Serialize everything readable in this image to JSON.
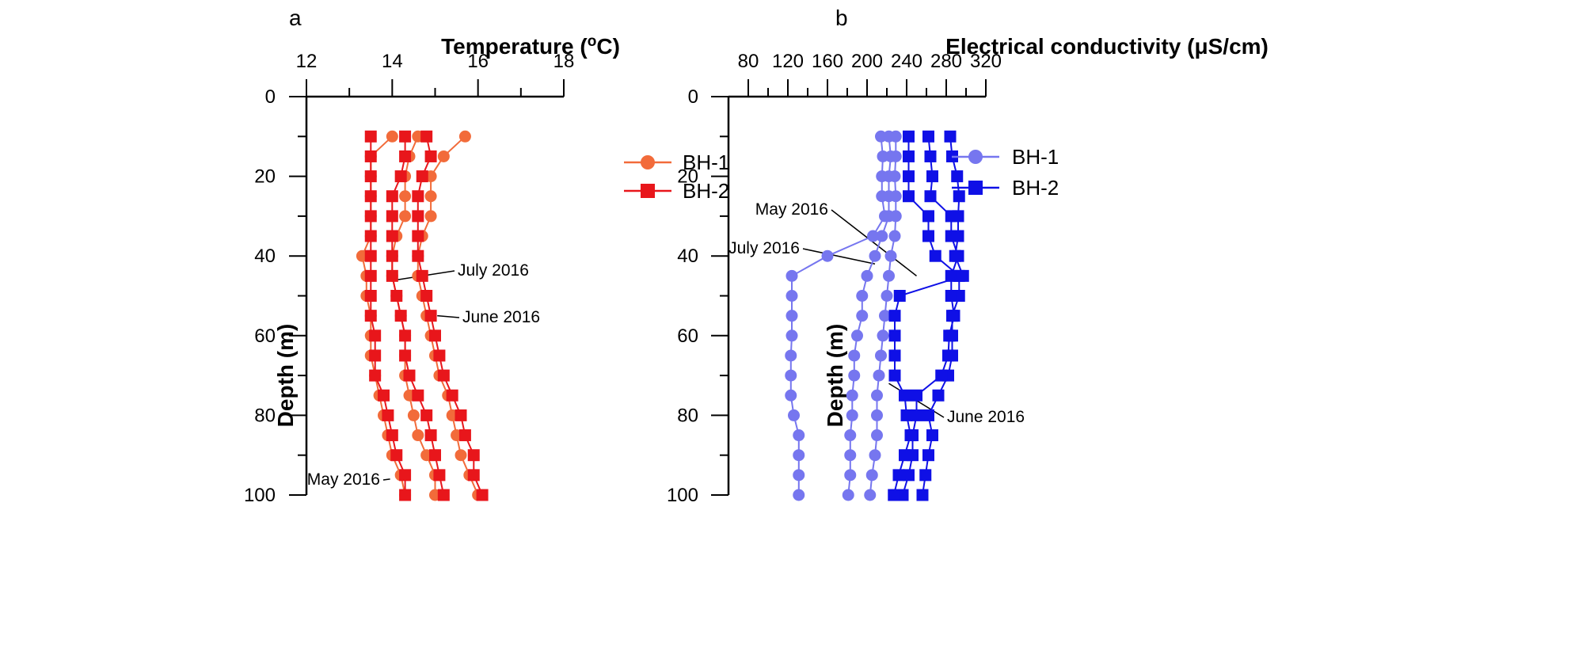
{
  "chart_data": [
    {
      "panel_label": "a",
      "type": "line",
      "title": "Temperature (°C)",
      "title_parts": [
        "Temperature (",
        "o",
        "C)"
      ],
      "xlabel": "Temperature (°C)",
      "ylabel": "Depth (m)",
      "xlim": [
        12,
        18
      ],
      "ylim": [
        0,
        100
      ],
      "xticks": [
        "12",
        "14",
        "16",
        "18"
      ],
      "yticks": [
        "0",
        "20",
        "40",
        "60",
        "80",
        "100"
      ],
      "x_axis_position": "top",
      "y_inverted": true,
      "legend": {
        "position": "top-right",
        "entries": [
          "BH-1",
          "BH-2"
        ]
      },
      "colors": {
        "BH-1": "#f26b3a",
        "BH-2": "#e8161b",
        "axis": "#000000"
      },
      "series": [
        {
          "name": "BH-1",
          "survey": "May 2016",
          "marker": "circle",
          "depth": [
            10,
            15,
            20,
            25,
            30,
            35,
            40,
            45,
            50,
            55,
            60,
            65,
            70,
            75,
            80,
            85,
            90,
            95,
            100
          ],
          "values": [
            14.0,
            13.5,
            13.5,
            13.5,
            13.5,
            13.5,
            13.3,
            13.4,
            13.4,
            13.5,
            13.5,
            13.5,
            13.6,
            13.7,
            13.8,
            13.9,
            14.0,
            14.2,
            14.3
          ]
        },
        {
          "name": "BH-1",
          "survey": "July 2016",
          "marker": "circle",
          "depth": [
            10,
            15,
            20,
            25,
            30,
            35,
            40,
            45,
            50,
            55,
            60,
            65,
            70,
            75,
            80,
            85,
            90,
            95,
            100
          ],
          "values": [
            14.6,
            14.4,
            14.3,
            14.3,
            14.3,
            14.1,
            14.0,
            14.0,
            14.1,
            14.2,
            14.3,
            14.3,
            14.3,
            14.4,
            14.5,
            14.6,
            14.8,
            15.0,
            15.0
          ]
        },
        {
          "name": "BH-1",
          "survey": "June 2016",
          "marker": "circle",
          "depth": [
            10,
            15,
            20,
            25,
            30,
            35,
            40,
            45,
            50,
            55,
            60,
            65,
            70,
            75,
            80,
            85,
            90,
            95,
            100
          ],
          "values": [
            15.7,
            15.2,
            14.9,
            14.9,
            14.9,
            14.7,
            14.6,
            14.6,
            14.7,
            14.8,
            14.9,
            15.0,
            15.1,
            15.3,
            15.4,
            15.5,
            15.6,
            15.8,
            16.0
          ]
        },
        {
          "name": "BH-2",
          "survey": "May 2016",
          "marker": "square",
          "depth": [
            10,
            15,
            20,
            25,
            30,
            35,
            40,
            45,
            50,
            55,
            60,
            65,
            70,
            75,
            80,
            85,
            90,
            95,
            100
          ],
          "values": [
            13.5,
            13.5,
            13.5,
            13.5,
            13.5,
            13.5,
            13.5,
            13.5,
            13.5,
            13.5,
            13.6,
            13.6,
            13.6,
            13.8,
            13.9,
            14.0,
            14.1,
            14.3,
            14.3
          ]
        },
        {
          "name": "BH-2",
          "survey": "July 2016",
          "marker": "square",
          "depth": [
            10,
            15,
            20,
            25,
            30,
            35,
            40,
            45,
            50,
            55,
            60,
            65,
            70,
            75,
            80,
            85,
            90,
            95,
            100
          ],
          "values": [
            14.3,
            14.3,
            14.2,
            14.0,
            14.0,
            14.0,
            14.0,
            14.0,
            14.1,
            14.2,
            14.3,
            14.3,
            14.4,
            14.6,
            14.8,
            14.9,
            15.0,
            15.1,
            15.2
          ]
        },
        {
          "name": "BH-2",
          "survey": "June 2016",
          "marker": "square",
          "depth": [
            10,
            15,
            20,
            25,
            30,
            35,
            40,
            45,
            50,
            55,
            60,
            65,
            70,
            75,
            80,
            85,
            90,
            95,
            100
          ],
          "values": [
            14.8,
            14.9,
            14.7,
            14.6,
            14.6,
            14.6,
            14.6,
            14.7,
            14.8,
            14.9,
            15.0,
            15.1,
            15.2,
            15.4,
            15.6,
            15.7,
            15.9,
            15.9,
            16.1
          ]
        }
      ],
      "annotations": [
        {
          "text": "July 2016",
          "target_x": 14.1,
          "target_depth": 46
        },
        {
          "text": "June 2016",
          "target_x": 15.05,
          "target_depth": 55
        },
        {
          "text": "May 2016",
          "target_x": 13.95,
          "target_depth": 96
        }
      ]
    },
    {
      "panel_label": "b",
      "type": "line",
      "title": "Electrical conductivity (µS/cm)",
      "title_parts": [
        "Electrical conductivity (",
        "μ",
        "S/cm)"
      ],
      "xlabel": "Electrical conductivity (µS/cm)",
      "ylabel": "Depth (m)",
      "xlim": [
        60,
        320
      ],
      "ylim": [
        0,
        100
      ],
      "xticks": [
        "80",
        "120",
        "160",
        "200",
        "240",
        "280",
        "320"
      ],
      "yticks": [
        "0",
        "20",
        "40",
        "60",
        "80",
        "100"
      ],
      "x_axis_position": "top",
      "y_inverted": true,
      "legend": {
        "position": "top-left",
        "entries": [
          "BH-1",
          "BH-2"
        ]
      },
      "colors": {
        "BH-1": "#7676ef",
        "BH-2": "#0f10e6",
        "axis": "#000000"
      },
      "series": [
        {
          "name": "BH-1",
          "survey": "July 2016",
          "marker": "circle",
          "depth": [
            10,
            15,
            20,
            25,
            30,
            35,
            40,
            45,
            50,
            55,
            60,
            65,
            70,
            75,
            80,
            85,
            90,
            95,
            100
          ],
          "values": [
            214,
            216,
            215,
            215,
            218,
            206,
            160,
            124,
            124,
            124,
            124,
            123,
            123,
            123,
            126,
            131,
            131,
            131,
            131
          ]
        },
        {
          "name": "BH-1",
          "survey": "May 2016",
          "marker": "circle",
          "depth": [
            10,
            15,
            20,
            25,
            30,
            35,
            40,
            45,
            50,
            55,
            60,
            65,
            70,
            75,
            80,
            85,
            90,
            95,
            100
          ],
          "values": [
            222,
            224,
            222,
            222,
            222,
            215,
            208,
            200,
            195,
            195,
            190,
            187,
            187,
            185,
            185,
            183,
            183,
            183,
            181
          ]
        },
        {
          "name": "BH-1",
          "survey": "June 2016",
          "marker": "circle",
          "depth": [
            10,
            15,
            20,
            25,
            30,
            35,
            40,
            45,
            50,
            55,
            60,
            65,
            70,
            75,
            80,
            85,
            90,
            95,
            100
          ],
          "values": [
            229,
            229,
            228,
            229,
            229,
            228,
            224,
            222,
            220,
            218,
            216,
            214,
            212,
            210,
            210,
            210,
            208,
            205,
            203
          ]
        },
        {
          "name": "BH-2",
          "survey": "July 2016",
          "marker": "square",
          "depth": [
            10,
            15,
            20,
            25,
            30,
            35,
            40,
            45,
            50,
            55,
            60,
            65,
            70,
            75,
            80,
            85,
            90,
            95,
            100
          ],
          "values": [
            242,
            242,
            242,
            242,
            262,
            262,
            269,
            293,
            293,
            286,
            286,
            286,
            282,
            272,
            262,
            266,
            262,
            259,
            256
          ]
        },
        {
          "name": "BH-2",
          "survey": "May 2016",
          "marker": "square",
          "depth": [
            10,
            15,
            20,
            25,
            30,
            35,
            40,
            45,
            50,
            55,
            60,
            65,
            70,
            75,
            80,
            85,
            90,
            95,
            100
          ],
          "values": [
            262,
            264,
            266,
            264,
            285,
            285,
            292,
            285,
            285,
            288,
            283,
            282,
            275,
            250,
            250,
            246,
            246,
            242,
            236
          ]
        },
        {
          "name": "BH-2",
          "survey": "June 2016",
          "marker": "square",
          "depth": [
            10,
            15,
            20,
            25,
            30,
            35,
            40,
            45,
            50,
            55,
            60,
            65,
            70,
            75,
            80,
            85,
            90,
            95,
            100
          ],
          "values": [
            284,
            286,
            291,
            293,
            292,
            292,
            289,
            297,
            233,
            228,
            228,
            228,
            228,
            238,
            240,
            244,
            238,
            232,
            227
          ]
        }
      ],
      "annotations": [
        {
          "text": "May 2016",
          "target_x": 250,
          "target_depth": 45
        },
        {
          "text": "July 2016",
          "target_x": 208,
          "target_depth": 42
        },
        {
          "text": "June 2016",
          "target_x": 222,
          "target_depth": 72
        }
      ]
    }
  ]
}
